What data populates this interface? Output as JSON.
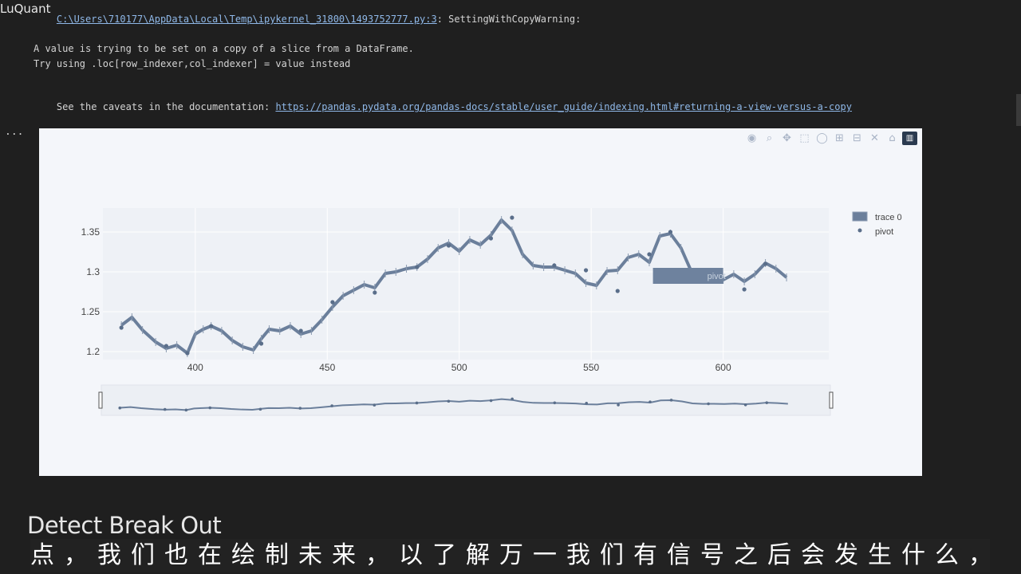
{
  "watermark": "LuQuant",
  "warning": {
    "path_line": "C:\\Users\\710177\\AppData\\Local\\Temp\\ipykernel_31800\\1493752777.py:3",
    "warning_type": ": SettingWithCopyWarning:",
    "line1": "A value is trying to be set on a copy of a slice from a DataFrame.",
    "line2": "Try using .loc[row_indexer,col_indexer] = value instead",
    "line3_prefix": "See the caveats in the documentation: ",
    "line3_link": "https://pandas.pydata.org/pandas-docs/stable/user_guide/indexing.html#returning-a-view-versus-a-copy"
  },
  "output_ellipsis": "...",
  "modebar": {
    "icons": [
      "camera-icon",
      "zoom-icon",
      "pan-icon",
      "box-select-icon",
      "lasso-icon",
      "zoom-in-icon",
      "zoom-out-icon",
      "autoscale-icon",
      "home-icon",
      "plotly-logo-icon"
    ],
    "glyphs": [
      "◉",
      "⌕",
      "✥",
      "⬚",
      "◯",
      "⊞",
      "⊟",
      "✕",
      "⌂",
      "▥"
    ]
  },
  "hover_label": "pivot",
  "colors": {
    "trace": "#6b7f9b",
    "pivot": "#5a6e8a",
    "plot_bg": "#f4f6fa",
    "grid": "#ffffff"
  },
  "chart_data": {
    "type": "line",
    "title": "",
    "xlabel": "",
    "ylabel": "",
    "xlim": [
      365,
      640
    ],
    "ylim": [
      1.19,
      1.38
    ],
    "x_ticks": [
      400,
      450,
      500,
      550,
      600
    ],
    "y_ticks": [
      1.2,
      1.25,
      1.3,
      1.35
    ],
    "y_tick_labels": [
      "1.2",
      "1.25",
      "1.3",
      "1.35"
    ],
    "legend_position": "top-right",
    "series": [
      {
        "name": "trace 0",
        "style": "ohlc-line",
        "x": [
          372,
          376,
          380,
          385,
          389,
          393,
          397,
          400,
          403,
          406,
          410,
          414,
          418,
          422,
          425,
          428,
          432,
          436,
          440,
          444,
          448,
          452,
          456,
          460,
          464,
          468,
          472,
          476,
          480,
          484,
          488,
          492,
          496,
          500,
          504,
          508,
          512,
          516,
          520,
          524,
          528,
          532,
          536,
          540,
          544,
          548,
          552,
          556,
          560,
          564,
          568,
          572,
          576,
          580,
          584,
          588,
          592,
          596,
          600,
          604,
          608,
          612,
          616,
          620,
          624
        ],
        "y": [
          1.233,
          1.243,
          1.227,
          1.212,
          1.204,
          1.208,
          1.198,
          1.222,
          1.228,
          1.232,
          1.226,
          1.214,
          1.206,
          1.202,
          1.216,
          1.228,
          1.226,
          1.232,
          1.222,
          1.226,
          1.24,
          1.256,
          1.27,
          1.277,
          1.284,
          1.28,
          1.298,
          1.3,
          1.304,
          1.306,
          1.316,
          1.33,
          1.336,
          1.326,
          1.34,
          1.334,
          1.346,
          1.365,
          1.352,
          1.322,
          1.308,
          1.306,
          1.306,
          1.302,
          1.298,
          1.286,
          1.283,
          1.301,
          1.302,
          1.318,
          1.322,
          1.312,
          1.345,
          1.348,
          1.33,
          1.3,
          1.292,
          1.294,
          1.29,
          1.297,
          1.288,
          1.297,
          1.311,
          1.304,
          1.293
        ]
      },
      {
        "name": "pivot",
        "style": "markers",
        "x": [
          372,
          389,
          397,
          406,
          425,
          440,
          452,
          468,
          484,
          496,
          512,
          520,
          536,
          548,
          560,
          572,
          580,
          594,
          608,
          616
        ],
        "y": [
          1.23,
          1.207,
          1.198,
          1.232,
          1.21,
          1.226,
          1.262,
          1.274,
          1.306,
          1.333,
          1.342,
          1.368,
          1.308,
          1.302,
          1.276,
          1.322,
          1.35,
          1.293,
          1.278,
          1.31
        ]
      }
    ]
  },
  "rangeslider": {
    "label": "range-slider"
  },
  "caption": {
    "english": "Detect Break Out",
    "chinese": "点，我们也在绘制未来，以了解万一我们有信号之后会发生什么，所"
  }
}
